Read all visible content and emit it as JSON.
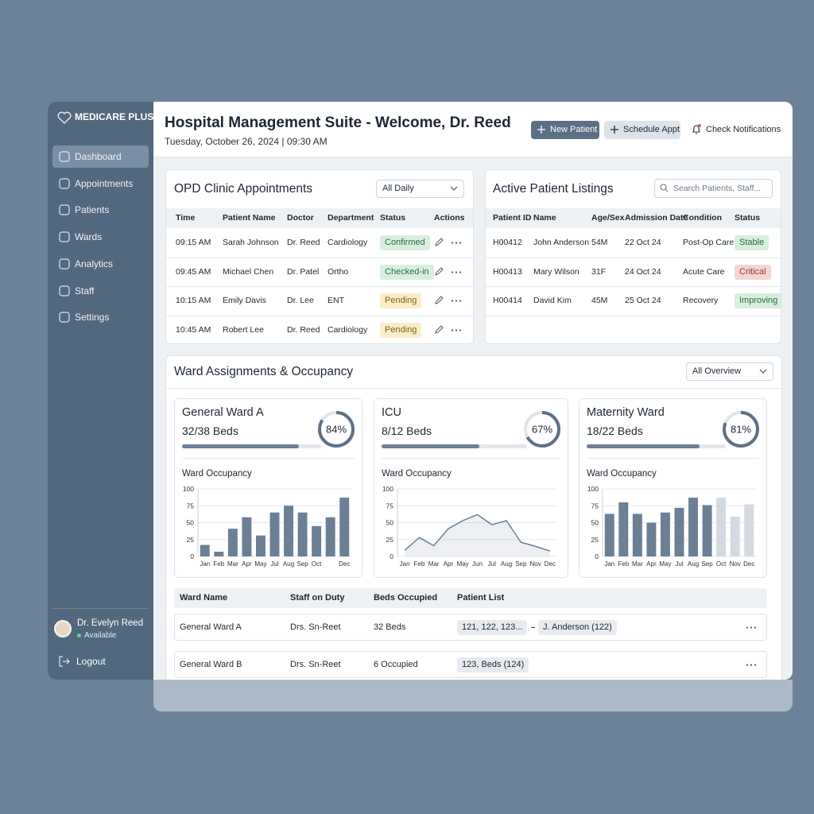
{
  "brand": "MEDICARE PLUS",
  "nav": [
    "Dashboard",
    "Appointments",
    "Patients",
    "Wards",
    "Analytics",
    "Staff",
    "Settings"
  ],
  "user": {
    "name": "Dr. Evelyn Reed",
    "status": "Available"
  },
  "logout": "Logout",
  "header": {
    "title": "Hospital Management Suite - Welcome, Dr. Reed",
    "subtitle": "Tuesday, October 26, 2024 | 09:30 AM",
    "buttons": [
      "New Patient",
      "Schedule Appt",
      "Check Notifications"
    ]
  },
  "opd": {
    "title": "OPD Clinic Appointments",
    "filter": "All Daily",
    "columns": [
      "Time",
      "Patient Name",
      "Doctor",
      "Department",
      "Status",
      "Actions"
    ],
    "rows": [
      [
        "09:15 AM",
        "Sarah Johnson",
        "Dr. Reed",
        "Cardiology",
        "Confirmed"
      ],
      [
        "09:45 AM",
        "Michael Chen",
        "Dr. Patel",
        "Ortho",
        "Checked-in"
      ],
      [
        "10:15 AM",
        "Emily Davis",
        "Dr. Lee",
        "ENT",
        "Pending"
      ],
      [
        "10:45 AM",
        "Robert Lee",
        "Dr. Reed",
        "Cardiology",
        "Pending"
      ]
    ]
  },
  "patients": {
    "title": "Active Patient Listings",
    "search": "Search Patients, Staff...",
    "columns": [
      "Patient ID",
      "Name",
      "Age/Sex",
      "Admission Date",
      "Condition",
      "Status"
    ],
    "rows": [
      [
        "H00412",
        "John Anderson",
        "54M",
        "22 Oct 24",
        "Post-Op Care",
        "Stable"
      ],
      [
        "H00413",
        "Mary Wilson",
        "31F",
        "24 Oct 24",
        "Acute Care",
        "Critical"
      ],
      [
        "H00414",
        "David Kim",
        "45M",
        "25 Oct 24",
        "Recovery",
        "Improving"
      ]
    ]
  },
  "wards": {
    "title": "Ward Assignments & Occupancy",
    "filter": "All Overview",
    "cards": [
      {
        "name": "General Ward A",
        "beds": "32/38 Beds",
        "occupancy": {
          "value": 84,
          "label": "84%"
        }
      },
      {
        "name": "ICU",
        "beds": "8/12 Beds",
        "occupancy": {
          "value": 67,
          "label": "67%"
        }
      },
      {
        "name": "Maternity Ward",
        "beds": "18/22 Beds",
        "occupancy": {
          "value": 81,
          "label": "81%"
        }
      }
    ],
    "columns": [
      "Ward Name",
      "Staff on Duty",
      "Beds Occupied",
      "Patient List"
    ],
    "rows": [
      [
        "General Ward A",
        "Drs. Sn-Reet",
        "32 Beds",
        [
          "121, 122, 123...",
          "J. Anderson (122)"
        ]
      ],
      [
        "General Ward B",
        "Drs. Sn-Reet",
        "6 Occupied",
        [
          "123, Beds (124)"
        ]
      ]
    ]
  },
  "chart_data": [
    {
      "type": "bar",
      "title": "Ward Occupancy",
      "categories": [
        "Jan",
        "Feb",
        "Mar",
        "Apr",
        "May",
        "Jul",
        "Aug",
        "Sep",
        "Oct",
        null,
        "Dec"
      ],
      "values": [
        17,
        7,
        41,
        58,
        31,
        65,
        75,
        65,
        45,
        58,
        87
      ],
      "colors": [
        "#6b7f95",
        "#6b7f95",
        "#6b7f95",
        "#6b7f95",
        "#6b7f95",
        "#6b7f95",
        "#6b7f95",
        "#6b7f95",
        "#6b7f95",
        "#6b7f95",
        "#6b7f95"
      ],
      "ylim": [
        0,
        100
      ],
      "yticks": [
        0,
        25,
        50,
        75,
        100
      ],
      "grid": true
    },
    {
      "type": "line",
      "title": "Ward Occupancy",
      "categories": [
        "Jan",
        "Feb",
        "Mar",
        "Apr",
        "May",
        "Jun",
        "Jul",
        "Aug",
        "Sep",
        "Nov",
        "Dec"
      ],
      "values": [
        9,
        28,
        16,
        41,
        53,
        62,
        47,
        53,
        21,
        15,
        8
      ],
      "color": "#6b7f95",
      "ylim": [
        0,
        100
      ],
      "yticks": [
        0,
        25,
        50,
        75,
        100
      ],
      "grid": true
    },
    {
      "type": "bar",
      "title": "Ward Occupancy",
      "categories": [
        "Jan",
        "Feb",
        "Mar",
        "Apr",
        "May",
        "Jul",
        "Aug",
        "Sep",
        "Oct",
        "Nov",
        "Dec"
      ],
      "values": [
        63,
        80,
        63,
        50,
        65,
        72,
        87,
        76,
        87,
        59,
        77
      ],
      "colors": [
        "#6b7f95",
        "#6b7f95",
        "#6b7f95",
        "#6b7f95",
        "#6b7f95",
        "#6b7f95",
        "#6b7f95",
        "#6b7f95",
        "#d3dae2",
        "#d3dae2",
        "#d3dae2"
      ],
      "ylim": [
        0,
        100
      ],
      "yticks": [
        0,
        25,
        50,
        75,
        100
      ],
      "grid": true
    }
  ]
}
